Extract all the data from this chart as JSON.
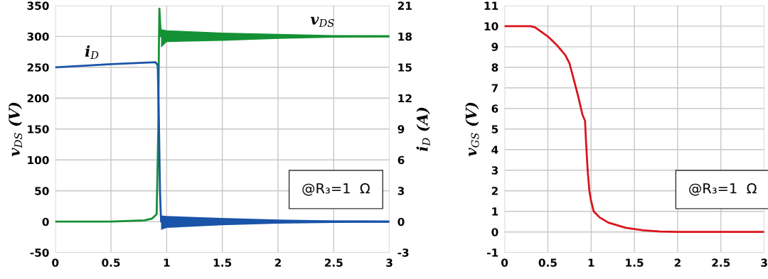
{
  "chart_data": [
    {
      "type": "line",
      "ylabel": "v$_{DS}$ (V)",
      "y2label": "i$_{D}$ (A)",
      "xlim": [
        0,
        3
      ],
      "xticks": [
        0,
        0.5,
        1,
        1.5,
        2,
        2.5,
        3
      ],
      "ylim": [
        -50,
        350
      ],
      "yticks": [
        -50,
        0,
        50,
        100,
        150,
        200,
        250,
        300,
        350
      ],
      "y2lim": [
        -3,
        21
      ],
      "y2ticks": [
        -3,
        0,
        3,
        6,
        9,
        12,
        15,
        18,
        21
      ],
      "grid": true,
      "line_style": "solid",
      "marker": "none",
      "series": [
        {
          "name": "v$_{DS}$",
          "color": "#149134",
          "x": [
            0,
            0.5,
            0.8,
            0.87,
            0.91,
            0.925,
            0.93,
            0.935,
            0.945,
            0.95,
            1,
            1.5,
            2,
            2.5,
            3
          ],
          "values": [
            0,
            0,
            2,
            5,
            12,
            150,
            280,
            345,
            310,
            300,
            300,
            300,
            300,
            300,
            300
          ],
          "lower": [
            null,
            null,
            null,
            null,
            null,
            null,
            null,
            null,
            null,
            282,
            291,
            293,
            296,
            298,
            299
          ],
          "upper": [
            null,
            null,
            null,
            null,
            null,
            null,
            null,
            null,
            null,
            312,
            310,
            306,
            304,
            302,
            302
          ]
        },
        {
          "name": "i$_{D}$",
          "color": "#1a54a8",
          "axis": "y2",
          "x": [
            0,
            0.5,
            0.9,
            0.92,
            0.93,
            0.94,
            0.95,
            1,
            1.5,
            2,
            2.5,
            3
          ],
          "values": [
            15,
            15.3,
            15.5,
            15.2,
            10,
            3,
            0,
            0,
            0,
            0,
            0,
            0
          ],
          "lower": [
            null,
            null,
            null,
            null,
            null,
            null,
            -0.8,
            -0.6,
            -0.35,
            -0.2,
            -0.12,
            -0.1
          ],
          "upper": [
            null,
            null,
            null,
            null,
            null,
            null,
            0.6,
            0.55,
            0.35,
            0.2,
            0.12,
            0.1
          ]
        }
      ],
      "annotations": [
        "@R₃=1  Ω"
      ]
    },
    {
      "type": "line",
      "ylabel": "v$_{GS}$ (V)",
      "xlim": [
        0,
        3
      ],
      "xticks": [
        0,
        0.5,
        1,
        1.5,
        2,
        2.5,
        3
      ],
      "ylim": [
        -1,
        11
      ],
      "yticks": [
        -1,
        0,
        1,
        2,
        3,
        4,
        5,
        6,
        7,
        8,
        9,
        10,
        11
      ],
      "grid": true,
      "line_style": "solid",
      "marker": "none",
      "series": [
        {
          "color": "#d9141c",
          "x": [
            0,
            0.3,
            0.35,
            0.5,
            0.6,
            0.7,
            0.75,
            0.8,
            0.85,
            0.9,
            0.93,
            0.94,
            0.96,
            0.98,
            1.0,
            1.03,
            1.1,
            1.2,
            1.4,
            1.6,
            1.8,
            2,
            3
          ],
          "values": [
            10,
            10,
            9.95,
            9.5,
            9.1,
            8.6,
            8.2,
            7.4,
            6.6,
            5.7,
            5.4,
            4.5,
            3,
            2,
            1.5,
            1,
            0.7,
            0.45,
            0.2,
            0.08,
            0.02,
            0,
            0
          ]
        }
      ],
      "annotations": [
        "@R₃=1  Ω"
      ]
    }
  ]
}
